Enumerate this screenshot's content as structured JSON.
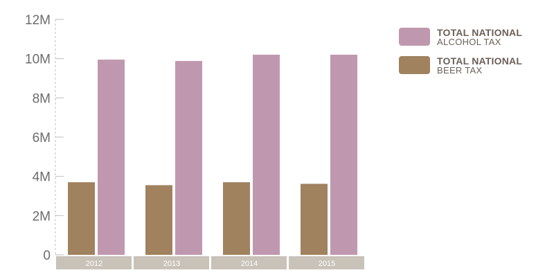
{
  "chart_data": {
    "type": "bar",
    "categories": [
      "2012",
      "2013",
      "2014",
      "2015"
    ],
    "series": [
      {
        "name": "TOTAL NATIONAL BEER TAX",
        "values": [
          3.7,
          3.55,
          3.7,
          3.62
        ],
        "color": "#a0825f"
      },
      {
        "name": "TOTAL NATIONAL ALCOHOL TAX",
        "values": [
          9.95,
          9.88,
          10.2,
          10.2
        ],
        "color": "#bf98af"
      }
    ],
    "ylim": [
      0,
      12
    ],
    "yticks": [
      0,
      2,
      4,
      6,
      8,
      10,
      12
    ],
    "ytick_labels": [
      "0",
      "2M",
      "4M",
      "6M",
      "8M",
      "10M",
      "12M"
    ],
    "unit": "M",
    "category_band_color": "#c8c2b8",
    "legend": [
      {
        "title": "TOTAL NATIONAL",
        "sub": "ALCOHOL TAX",
        "color": "#bf98af"
      },
      {
        "title": "TOTAL NATIONAL",
        "sub": "BEER TAX",
        "color": "#a0825f"
      }
    ],
    "legend_position": "top-right",
    "grid": false
  }
}
